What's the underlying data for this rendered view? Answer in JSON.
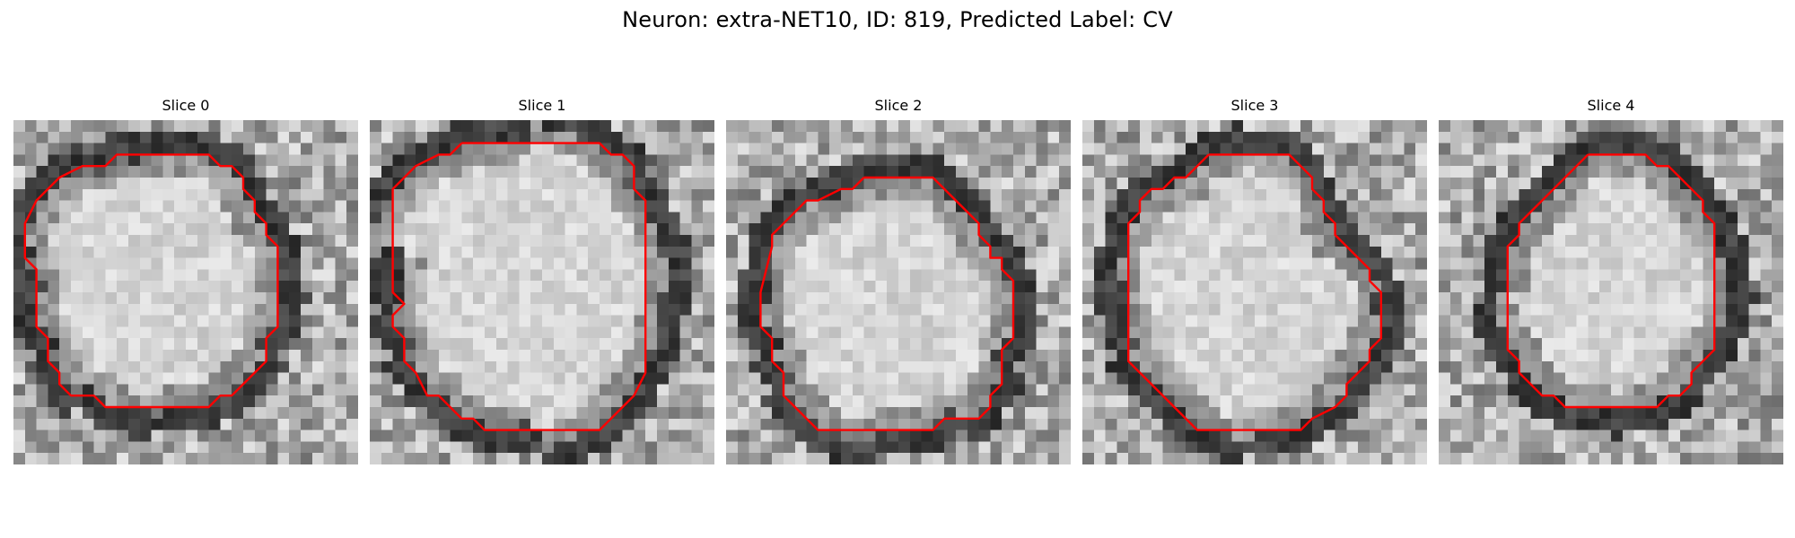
{
  "figure": {
    "title": "Neuron: extra-NET10, ID: 819, Predicted Label: CV"
  },
  "panels": [
    {
      "title": "Slice 0",
      "contour": [
        [
          11,
          3
        ],
        [
          17,
          3
        ],
        [
          18,
          4
        ],
        [
          19,
          4
        ],
        [
          20,
          5
        ],
        [
          20,
          6
        ],
        [
          21,
          7
        ],
        [
          21,
          8
        ],
        [
          22,
          9
        ],
        [
          22,
          10
        ],
        [
          23,
          11
        ],
        [
          23,
          12
        ],
        [
          23,
          18
        ],
        [
          22,
          19
        ],
        [
          22,
          21
        ],
        [
          21,
          22
        ],
        [
          20,
          23
        ],
        [
          19,
          24
        ],
        [
          18,
          24
        ],
        [
          17,
          25
        ],
        [
          8,
          25
        ],
        [
          7,
          24
        ],
        [
          5,
          24
        ],
        [
          4,
          23
        ],
        [
          4,
          22
        ],
        [
          3,
          21
        ],
        [
          3,
          19
        ],
        [
          2,
          18
        ],
        [
          2,
          13
        ],
        [
          1,
          12
        ],
        [
          1,
          9
        ],
        [
          2,
          7
        ],
        [
          4,
          5
        ],
        [
          6,
          4
        ],
        [
          8,
          4
        ],
        [
          9,
          3
        ]
      ]
    },
    {
      "title": "Slice 1",
      "contour": [
        [
          8,
          2
        ],
        [
          20,
          2
        ],
        [
          21,
          3
        ],
        [
          22,
          3
        ],
        [
          23,
          4
        ],
        [
          23,
          6
        ],
        [
          24,
          7
        ],
        [
          24,
          22
        ],
        [
          23,
          24
        ],
        [
          22,
          25
        ],
        [
          21,
          26
        ],
        [
          20,
          27
        ],
        [
          10,
          27
        ],
        [
          9,
          26
        ],
        [
          8,
          26
        ],
        [
          6,
          24
        ],
        [
          5,
          24
        ],
        [
          4,
          22
        ],
        [
          3,
          21
        ],
        [
          3,
          19
        ],
        [
          2,
          18
        ],
        [
          2,
          17
        ],
        [
          3,
          16
        ],
        [
          2,
          15
        ],
        [
          2,
          6
        ],
        [
          4,
          4
        ],
        [
          6,
          3
        ],
        [
          7,
          3
        ]
      ]
    },
    {
      "title": "Slice 2",
      "contour": [
        [
          12,
          5
        ],
        [
          18,
          5
        ],
        [
          19,
          6
        ],
        [
          20,
          7
        ],
        [
          21,
          8
        ],
        [
          22,
          9
        ],
        [
          22,
          10
        ],
        [
          23,
          11
        ],
        [
          23,
          12
        ],
        [
          24,
          12
        ],
        [
          24,
          13
        ],
        [
          25,
          14
        ],
        [
          25,
          19
        ],
        [
          24,
          20
        ],
        [
          24,
          23
        ],
        [
          23,
          24
        ],
        [
          23,
          25
        ],
        [
          22,
          26
        ],
        [
          19,
          26
        ],
        [
          18,
          27
        ],
        [
          8,
          27
        ],
        [
          7,
          26
        ],
        [
          6,
          25
        ],
        [
          5,
          24
        ],
        [
          5,
          22
        ],
        [
          4,
          21
        ],
        [
          4,
          19
        ],
        [
          3,
          18
        ],
        [
          3,
          15
        ],
        [
          4,
          11
        ],
        [
          4,
          10
        ],
        [
          5,
          9
        ],
        [
          6,
          8
        ],
        [
          7,
          7
        ],
        [
          8,
          7
        ],
        [
          10,
          6
        ],
        [
          11,
          6
        ]
      ]
    },
    {
      "title": "Slice 3",
      "contour": [
        [
          11,
          3
        ],
        [
          18,
          3
        ],
        [
          19,
          4
        ],
        [
          20,
          5
        ],
        [
          20,
          6
        ],
        [
          21,
          7
        ],
        [
          21,
          8
        ],
        [
          22,
          9
        ],
        [
          22,
          10
        ],
        [
          23,
          11
        ],
        [
          24,
          12
        ],
        [
          25,
          13
        ],
        [
          25,
          14
        ],
        [
          26,
          15
        ],
        [
          26,
          19
        ],
        [
          25,
          20
        ],
        [
          25,
          21
        ],
        [
          24,
          22
        ],
        [
          23,
          23
        ],
        [
          23,
          24
        ],
        [
          22,
          25
        ],
        [
          20,
          26
        ],
        [
          19,
          27
        ],
        [
          10,
          27
        ],
        [
          9,
          26
        ],
        [
          8,
          25
        ],
        [
          7,
          24
        ],
        [
          6,
          23
        ],
        [
          5,
          22
        ],
        [
          4,
          21
        ],
        [
          4,
          19
        ],
        [
          4,
          9
        ],
        [
          5,
          8
        ],
        [
          5,
          7
        ],
        [
          6,
          6
        ],
        [
          7,
          6
        ],
        [
          8,
          5
        ],
        [
          9,
          5
        ],
        [
          10,
          4
        ]
      ]
    },
    {
      "title": "Slice 4",
      "contour": [
        [
          13,
          3
        ],
        [
          18,
          3
        ],
        [
          19,
          4
        ],
        [
          20,
          4
        ],
        [
          21,
          5
        ],
        [
          22,
          6
        ],
        [
          23,
          7
        ],
        [
          23,
          8
        ],
        [
          24,
          9
        ],
        [
          24,
          20
        ],
        [
          23,
          21
        ],
        [
          22,
          22
        ],
        [
          22,
          23
        ],
        [
          21,
          24
        ],
        [
          20,
          24
        ],
        [
          19,
          25
        ],
        [
          11,
          25
        ],
        [
          10,
          24
        ],
        [
          9,
          24
        ],
        [
          8,
          23
        ],
        [
          7,
          22
        ],
        [
          7,
          21
        ],
        [
          6,
          20
        ],
        [
          6,
          11
        ],
        [
          7,
          10
        ],
        [
          7,
          9
        ],
        [
          8,
          8
        ],
        [
          9,
          7
        ],
        [
          10,
          6
        ],
        [
          11,
          5
        ],
        [
          12,
          4
        ]
      ]
    }
  ]
}
